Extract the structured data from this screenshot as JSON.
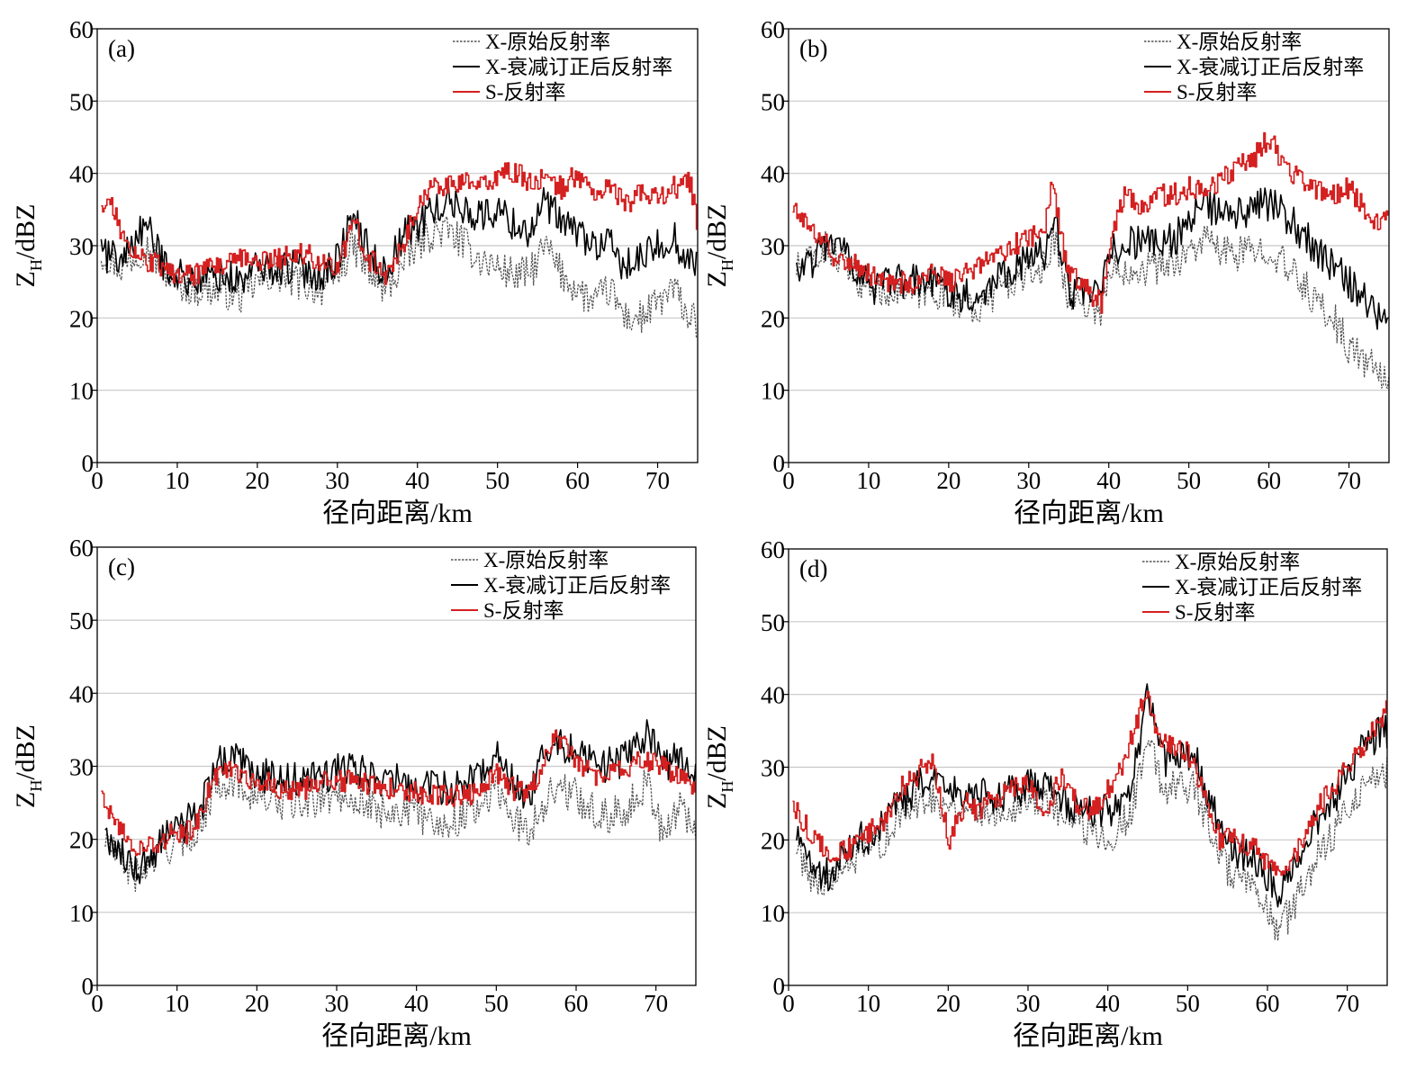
{
  "figure": {
    "background": "#ffffff"
  },
  "colors": {
    "x_raw": "#555555",
    "x_corrected": "#000000",
    "s_band": "#d42020",
    "grid": "#c8c8c8"
  },
  "chart_data": [
    {
      "type": "line",
      "panel_label": "(a)",
      "xlabel": "径向距离/km",
      "ylabel": "Z_H/dBZ",
      "ylabel_main": "Z",
      "ylabel_sub": "H",
      "ylabel_rest": "/dBZ",
      "xlim": [
        0,
        75
      ],
      "ylim": [
        0,
        60
      ],
      "xticks": [
        0,
        10,
        20,
        30,
        40,
        50,
        60,
        70
      ],
      "yticks": [
        0,
        10,
        20,
        30,
        40,
        50,
        60
      ],
      "grid": "horizontal",
      "legend": "top-right",
      "series": [
        {
          "name": "X-原始反射率",
          "style": "dotted",
          "color": "#555555",
          "x": [
            0.5,
            3,
            6,
            8,
            10,
            12,
            15,
            18,
            20,
            22,
            25,
            28,
            30,
            32,
            34,
            36,
            38,
            40,
            42,
            44,
            46,
            48,
            50,
            52,
            54,
            56,
            58,
            60,
            62,
            64,
            66,
            68,
            70,
            72,
            74,
            75
          ],
          "y": [
            29,
            27,
            30,
            27,
            25,
            24,
            24,
            23,
            25,
            26,
            25,
            24,
            26,
            30,
            26,
            24,
            27,
            30,
            32,
            32,
            30,
            28,
            27,
            26,
            26,
            30,
            26,
            24,
            22,
            24,
            20,
            20,
            22,
            24,
            20,
            19
          ]
        },
        {
          "name": "X-衰减订正后反射率",
          "style": "solid",
          "color": "#000000",
          "x": [
            0.5,
            3,
            6,
            8,
            10,
            12,
            15,
            18,
            20,
            22,
            25,
            28,
            30,
            32,
            34,
            36,
            38,
            40,
            42,
            44,
            46,
            48,
            50,
            52,
            54,
            56,
            58,
            60,
            62,
            64,
            66,
            68,
            70,
            72,
            74,
            75
          ],
          "y": [
            29,
            28,
            33,
            28,
            26,
            25,
            26,
            25,
            27,
            27,
            27,
            26,
            28,
            34,
            29,
            26,
            31,
            33,
            35,
            36,
            35,
            34,
            35,
            33,
            32,
            36,
            33,
            32,
            30,
            30,
            27,
            28,
            30,
            31,
            28,
            27
          ]
        },
        {
          "name": "S-反射率",
          "style": "solid",
          "color": "#d42020",
          "x": [
            0.5,
            2,
            4,
            6,
            8,
            10,
            12,
            15,
            18,
            20,
            22,
            25,
            28,
            30,
            32,
            34,
            36,
            38,
            40,
            42,
            44,
            46,
            48,
            50,
            52,
            54,
            56,
            58,
            60,
            62,
            64,
            66,
            68,
            70,
            72,
            74,
            75
          ],
          "y": [
            36,
            35,
            29,
            28,
            27,
            26,
            26,
            27,
            28,
            28,
            28,
            29,
            28,
            27,
            33,
            28,
            26,
            30,
            35,
            39,
            38,
            39,
            38,
            40,
            40,
            39,
            39,
            38,
            40,
            37,
            38,
            36,
            37,
            37,
            38,
            39,
            32
          ]
        }
      ]
    },
    {
      "type": "line",
      "panel_label": "(b)",
      "xlabel": "径向距离/km",
      "ylabel": "Z_H/dBZ",
      "ylabel_main": "Z",
      "ylabel_sub": "H",
      "ylabel_rest": "/dBZ",
      "xlim": [
        0,
        75
      ],
      "ylim": [
        0,
        60
      ],
      "xticks": [
        0,
        10,
        20,
        30,
        40,
        50,
        60,
        70
      ],
      "yticks": [
        0,
        10,
        20,
        30,
        40,
        50,
        60
      ],
      "grid": "horizontal",
      "legend": "top-right",
      "series": [
        {
          "name": "X-原始反射率",
          "style": "dotted",
          "color": "#555555",
          "x": [
            1,
            3,
            5,
            7,
            9,
            11,
            13,
            15,
            18,
            20,
            22,
            24,
            26,
            28,
            30,
            32,
            33,
            34,
            35,
            37,
            39,
            40,
            42,
            44,
            46,
            48,
            50,
            52,
            54,
            56,
            58,
            60,
            62,
            64,
            66,
            68,
            70,
            72,
            74,
            75
          ],
          "y": [
            27,
            28,
            30,
            27,
            25,
            24,
            24,
            23,
            24,
            23,
            22,
            21,
            24,
            25,
            26,
            27,
            31,
            28,
            23,
            22,
            21,
            26,
            27,
            27,
            27,
            28,
            29,
            31,
            29,
            29,
            29,
            30,
            27,
            25,
            22,
            20,
            16,
            14,
            12,
            11
          ]
        },
        {
          "name": "X-衰减订正后反射率",
          "style": "solid",
          "color": "#000000",
          "x": [
            1,
            3,
            5,
            7,
            9,
            11,
            13,
            15,
            18,
            20,
            22,
            24,
            26,
            28,
            30,
            32,
            33,
            34,
            35,
            37,
            39,
            40,
            42,
            44,
            46,
            48,
            50,
            52,
            54,
            56,
            58,
            60,
            62,
            64,
            66,
            68,
            70,
            72,
            74,
            75
          ],
          "y": [
            27,
            28,
            31,
            29,
            26,
            24,
            25,
            25,
            25,
            24,
            23,
            23,
            26,
            27,
            28,
            29,
            34,
            30,
            24,
            23,
            23,
            29,
            30,
            31,
            30,
            31,
            33,
            36,
            34,
            34,
            35,
            36,
            34,
            32,
            29,
            27,
            25,
            23,
            20,
            18
          ]
        },
        {
          "name": "S-反射率",
          "style": "solid",
          "color": "#d42020",
          "x": [
            0.5,
            2,
            4,
            6,
            8,
            10,
            12,
            14,
            16,
            18,
            20,
            22,
            24,
            26,
            28,
            30,
            32,
            33,
            34,
            35,
            37,
            39,
            40,
            42,
            44,
            46,
            48,
            50,
            52,
            54,
            56,
            58,
            60,
            62,
            64,
            66,
            68,
            70,
            72,
            74,
            75
          ],
          "y": [
            35,
            34,
            31,
            28,
            28,
            26,
            25,
            25,
            25,
            26,
            25,
            26,
            27,
            29,
            30,
            31,
            33,
            39,
            31,
            26,
            24,
            22,
            30,
            38,
            35,
            37,
            37,
            38,
            38,
            39,
            41,
            42,
            45,
            41,
            39,
            38,
            37,
            38,
            35,
            33,
            34
          ]
        }
      ]
    },
    {
      "type": "line",
      "panel_label": "(c)",
      "xlabel": "径向距离/km",
      "ylabel": "Z_H/dBZ",
      "ylabel_main": "Z",
      "ylabel_sub": "H",
      "ylabel_rest": "/dBZ",
      "xlim": [
        0,
        75
      ],
      "ylim": [
        0,
        60
      ],
      "xticks": [
        0,
        10,
        20,
        30,
        40,
        50,
        60,
        70
      ],
      "yticks": [
        0,
        10,
        20,
        30,
        40,
        50,
        60
      ],
      "grid": "horizontal",
      "legend": "top-right",
      "series": [
        {
          "name": "X-原始反射率",
          "style": "dotted",
          "color": "#555555",
          "x": [
            1,
            3,
            5,
            7,
            9,
            11,
            13,
            15,
            17,
            20,
            23,
            26,
            29,
            32,
            35,
            38,
            41,
            44,
            47,
            50,
            52,
            54,
            57,
            60,
            63,
            66,
            69,
            71,
            73,
            75
          ],
          "y": [
            20,
            17,
            15,
            17,
            19,
            20,
            22,
            28,
            28,
            26,
            25,
            25,
            26,
            26,
            24,
            24,
            23,
            22,
            24,
            27,
            23,
            21,
            27,
            26,
            23,
            24,
            28,
            20,
            25,
            21
          ]
        },
        {
          "name": "X-衰减订正后反射率",
          "style": "solid",
          "color": "#000000",
          "x": [
            1,
            3,
            5,
            7,
            9,
            11,
            13,
            15,
            17,
            20,
            23,
            26,
            29,
            32,
            35,
            38,
            41,
            44,
            47,
            50,
            52,
            54,
            57,
            60,
            63,
            66,
            69,
            71,
            73,
            75
          ],
          "y": [
            21,
            18,
            16,
            18,
            21,
            22,
            24,
            31,
            31,
            29,
            28,
            28,
            29,
            30,
            28,
            28,
            27,
            27,
            28,
            32,
            28,
            26,
            34,
            32,
            30,
            31,
            35,
            30,
            32,
            28
          ]
        },
        {
          "name": "S-反射率",
          "style": "solid",
          "color": "#d42020",
          "x": [
            0.5,
            2,
            4,
            6,
            8,
            10,
            12,
            14,
            16,
            18,
            20,
            23,
            26,
            29,
            32,
            35,
            38,
            41,
            44,
            47,
            50,
            52,
            54,
            57,
            60,
            63,
            66,
            69,
            71,
            73,
            75
          ],
          "y": [
            25,
            23,
            19,
            19,
            20,
            21,
            21,
            27,
            30,
            29,
            28,
            27,
            27,
            28,
            28,
            27,
            27,
            26,
            26,
            26,
            29,
            27,
            26,
            34,
            31,
            28,
            30,
            31,
            30,
            28,
            27
          ]
        }
      ]
    },
    {
      "type": "line",
      "panel_label": "(d)",
      "xlabel": "径向距离/km",
      "ylabel": "Z_H/dBZ",
      "ylabel_main": "Z",
      "ylabel_sub": "H",
      "ylabel_rest": "/dBZ",
      "xlim": [
        0,
        75
      ],
      "ylim": [
        0,
        60
      ],
      "xticks": [
        0,
        10,
        20,
        30,
        40,
        50,
        60,
        70
      ],
      "yticks": [
        0,
        10,
        20,
        30,
        40,
        50,
        60
      ],
      "grid": "horizontal",
      "legend": "top-right",
      "series": [
        {
          "name": "X-原始反射率",
          "style": "dotted",
          "color": "#555555",
          "x": [
            1,
            3,
            5,
            7,
            9,
            11,
            14,
            17,
            20,
            23,
            26,
            29,
            32,
            35,
            38,
            41,
            43,
            45,
            47,
            49,
            51,
            53,
            55,
            57,
            59,
            61,
            63,
            65,
            67,
            69,
            71,
            73,
            75
          ],
          "y": [
            19,
            15,
            14,
            16,
            18,
            19,
            23,
            26,
            25,
            24,
            24,
            25,
            26,
            23,
            21,
            21,
            24,
            34,
            27,
            28,
            27,
            21,
            16,
            14,
            12,
            8,
            10,
            15,
            19,
            22,
            26,
            29,
            29
          ]
        },
        {
          "name": "X-衰减订正后反射率",
          "style": "solid",
          "color": "#000000",
          "x": [
            1,
            3,
            5,
            7,
            9,
            11,
            14,
            17,
            20,
            23,
            26,
            29,
            32,
            35,
            38,
            41,
            43,
            45,
            47,
            49,
            51,
            53,
            55,
            57,
            59,
            61,
            63,
            65,
            67,
            69,
            71,
            73,
            75
          ],
          "y": [
            20,
            16,
            15,
            18,
            20,
            21,
            25,
            28,
            27,
            26,
            26,
            27,
            28,
            25,
            24,
            24,
            28,
            40,
            31,
            32,
            31,
            25,
            19,
            18,
            17,
            13,
            15,
            20,
            24,
            27,
            31,
            34,
            35
          ]
        },
        {
          "name": "S-反射率",
          "style": "solid",
          "color": "#d42020",
          "x": [
            0.5,
            2,
            4,
            6,
            8,
            10,
            12,
            14,
            16,
            18,
            19,
            20,
            22,
            24,
            26,
            28,
            30,
            32,
            34,
            36,
            38,
            40,
            42,
            44,
            45,
            46,
            48,
            50,
            52,
            54,
            56,
            58,
            60,
            62,
            64,
            66,
            68,
            70,
            72,
            74,
            75
          ],
          "y": [
            25,
            22,
            19,
            18,
            19,
            21,
            23,
            27,
            29,
            31,
            26,
            20,
            25,
            24,
            26,
            27,
            28,
            23,
            29,
            25,
            24,
            27,
            31,
            38,
            40,
            34,
            33,
            32,
            26,
            20,
            20,
            19,
            17,
            15,
            19,
            24,
            27,
            30,
            33,
            36,
            38
          ]
        }
      ]
    }
  ]
}
